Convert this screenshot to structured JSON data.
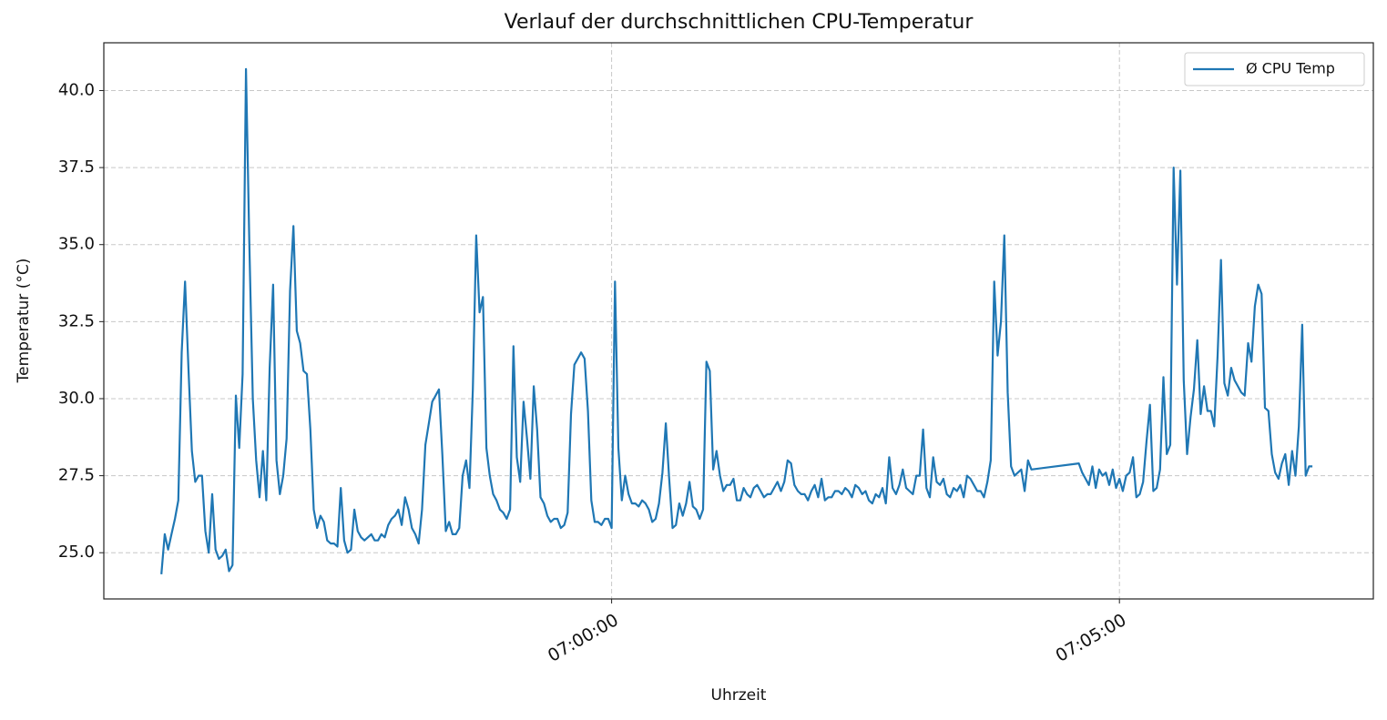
{
  "chart_data": {
    "type": "line",
    "title": "Verlauf der durchschnittlichen CPU-Temperatur",
    "xlabel": "Uhrzeit",
    "ylabel": "Temperatur (°C)",
    "legend": "upper right",
    "grid": true,
    "xlim": [
      "06:55:00",
      "07:07:30"
    ],
    "xticks": [
      "07:00:00",
      "07:05:00"
    ],
    "ylim": [
      23.5,
      41.55
    ],
    "yticks": [
      {
        "value": 25,
        "label": "25.0"
      },
      {
        "value": 27.5,
        "label": "27.5"
      },
      {
        "value": 30,
        "label": "30.0"
      },
      {
        "value": 32.5,
        "label": "32.5"
      },
      {
        "value": 35,
        "label": "35.0"
      },
      {
        "value": 37.5,
        "label": "37.5"
      },
      {
        "value": 40,
        "label": "40.0"
      }
    ],
    "x": [
      "06:55:34",
      "06:55:36",
      "06:55:38",
      "06:55:40",
      "06:55:42",
      "06:55:44",
      "06:55:46",
      "06:55:48",
      "06:55:50",
      "06:55:52",
      "06:55:54",
      "06:55:56",
      "06:55:58",
      "06:56:00",
      "06:56:02",
      "06:56:04",
      "06:56:06",
      "06:56:08",
      "06:56:10",
      "06:56:12",
      "06:56:14",
      "06:56:16",
      "06:56:18",
      "06:56:20",
      "06:56:22",
      "06:56:24",
      "06:56:26",
      "06:56:28",
      "06:56:30",
      "06:56:32",
      "06:56:34",
      "06:56:36",
      "06:56:38",
      "06:56:40",
      "06:56:42",
      "06:56:44",
      "06:56:46",
      "06:56:48",
      "06:56:50",
      "06:56:52",
      "06:56:54",
      "06:56:56",
      "06:56:58",
      "06:57:00",
      "06:57:02",
      "06:57:04",
      "06:57:06",
      "06:57:08",
      "06:57:10",
      "06:57:12",
      "06:57:14",
      "06:57:16",
      "06:57:18",
      "06:57:20",
      "06:57:22",
      "06:57:24",
      "06:57:26",
      "06:57:28",
      "06:57:30",
      "06:57:32",
      "06:57:34",
      "06:57:36",
      "06:57:38",
      "06:57:40",
      "06:57:42",
      "06:57:44",
      "06:57:46",
      "06:57:48",
      "06:57:50",
      "06:57:52",
      "06:57:54",
      "06:57:56",
      "06:57:58",
      "06:58:00",
      "06:58:02",
      "06:58:04",
      "06:58:06",
      "06:58:08",
      "06:58:10",
      "06:58:12",
      "06:58:14",
      "06:58:16",
      "06:58:18",
      "06:58:20",
      "06:58:22",
      "06:58:24",
      "06:58:26",
      "06:58:28",
      "06:58:30",
      "06:58:32",
      "06:58:34",
      "06:58:36",
      "06:58:38",
      "06:58:40",
      "06:58:42",
      "06:58:44",
      "06:58:46",
      "06:58:48",
      "06:58:50",
      "06:58:52",
      "06:58:54",
      "06:58:56",
      "06:58:58",
      "06:59:00",
      "06:59:02",
      "06:59:04",
      "06:59:06",
      "06:59:08",
      "06:59:10",
      "06:59:12",
      "06:59:14",
      "06:59:16",
      "06:59:18",
      "06:59:20",
      "06:59:22",
      "06:59:24",
      "06:59:26",
      "06:59:28",
      "06:59:30",
      "06:59:32",
      "06:59:34",
      "06:59:36",
      "06:59:38",
      "06:59:40",
      "06:59:42",
      "06:59:44",
      "06:59:46",
      "06:59:48",
      "06:59:50",
      "06:59:52",
      "06:59:54",
      "06:59:56",
      "06:59:58",
      "07:00:00",
      "07:00:02",
      "07:00:04",
      "07:00:06",
      "07:00:08",
      "07:00:10",
      "07:00:12",
      "07:00:14",
      "07:00:16",
      "07:00:18",
      "07:00:20",
      "07:00:22",
      "07:00:24",
      "07:00:26",
      "07:00:28",
      "07:00:30",
      "07:00:32",
      "07:00:34",
      "07:00:36",
      "07:00:38",
      "07:00:40",
      "07:00:42",
      "07:00:44",
      "07:00:46",
      "07:00:48",
      "07:00:50",
      "07:00:52",
      "07:00:54",
      "07:00:56",
      "07:00:58",
      "07:01:00",
      "07:01:02",
      "07:01:04",
      "07:01:06",
      "07:01:08",
      "07:01:10",
      "07:01:12",
      "07:01:14",
      "07:01:16",
      "07:01:18",
      "07:01:20",
      "07:01:22",
      "07:01:24",
      "07:01:26",
      "07:01:28",
      "07:01:30",
      "07:01:32",
      "07:01:34",
      "07:01:36",
      "07:01:38",
      "07:01:40",
      "07:01:42",
      "07:01:44",
      "07:01:46",
      "07:01:48",
      "07:01:50",
      "07:01:52",
      "07:01:54",
      "07:01:56",
      "07:01:58",
      "07:02:00",
      "07:02:02",
      "07:02:04",
      "07:02:06",
      "07:02:08",
      "07:02:10",
      "07:02:12",
      "07:02:14",
      "07:02:16",
      "07:02:18",
      "07:02:20",
      "07:02:22",
      "07:02:24",
      "07:02:26",
      "07:02:28",
      "07:02:30",
      "07:02:32",
      "07:02:34",
      "07:02:36",
      "07:02:38",
      "07:02:40",
      "07:02:42",
      "07:02:44",
      "07:02:46",
      "07:02:48",
      "07:02:50",
      "07:02:52",
      "07:02:54",
      "07:02:56",
      "07:02:58",
      "07:03:00",
      "07:03:02",
      "07:03:04",
      "07:03:06",
      "07:03:08",
      "07:03:10",
      "07:03:12",
      "07:03:14",
      "07:03:16",
      "07:03:18",
      "07:03:20",
      "07:03:22",
      "07:03:24",
      "07:03:26",
      "07:03:28",
      "07:03:30",
      "07:03:32",
      "07:03:34",
      "07:03:36",
      "07:03:38",
      "07:03:40",
      "07:03:42",
      "07:03:44",
      "07:03:46",
      "07:03:48",
      "07:03:50",
      "07:03:52",
      "07:03:54",
      "07:03:56",
      "07:03:58",
      "07:04:00",
      "07:04:02",
      "07:04:04",
      "07:04:06",
      "07:04:08",
      "07:04:36",
      "07:04:38",
      "07:04:40",
      "07:04:42",
      "07:04:44",
      "07:04:46",
      "07:04:48",
      "07:04:50",
      "07:04:52",
      "07:04:54",
      "07:04:56",
      "07:04:58",
      "07:05:00",
      "07:05:02",
      "07:05:04",
      "07:05:06",
      "07:05:08",
      "07:05:10",
      "07:05:12",
      "07:05:14",
      "07:05:16",
      "07:05:18",
      "07:05:20",
      "07:05:22",
      "07:05:24",
      "07:05:26",
      "07:05:28",
      "07:05:30",
      "07:05:32",
      "07:05:34",
      "07:05:36",
      "07:05:38",
      "07:05:40",
      "07:05:42",
      "07:05:44",
      "07:05:46",
      "07:05:48",
      "07:05:50",
      "07:05:52",
      "07:05:54",
      "07:05:56",
      "07:05:58",
      "07:06:00",
      "07:06:02",
      "07:06:04",
      "07:06:06",
      "07:06:08",
      "07:06:10",
      "07:06:12",
      "07:06:14",
      "07:06:16",
      "07:06:18",
      "07:06:20",
      "07:06:22",
      "07:06:24",
      "07:06:26",
      "07:06:28",
      "07:06:30",
      "07:06:32",
      "07:06:34",
      "07:06:36",
      "07:06:38",
      "07:06:40",
      "07:06:42",
      "07:06:44",
      "07:06:46",
      "07:06:48",
      "07:06:50",
      "07:06:52",
      "07:06:54"
    ],
    "series": [
      {
        "name": "Ø CPU Temp",
        "color": "#1f77b4",
        "values": [
          24.3,
          25.6,
          25.1,
          25.6,
          26.1,
          26.7,
          31.5,
          33.8,
          31.0,
          28.3,
          27.3,
          27.5,
          27.5,
          25.7,
          25.0,
          26.9,
          25.1,
          24.8,
          24.9,
          25.1,
          24.4,
          24.6,
          30.1,
          28.4,
          30.8,
          40.7,
          35.0,
          30.0,
          28.0,
          26.8,
          28.3,
          26.7,
          31.0,
          33.7,
          28.0,
          26.9,
          27.5,
          28.7,
          33.5,
          35.6,
          32.2,
          31.8,
          30.9,
          30.8,
          29.0,
          26.4,
          25.8,
          26.2,
          26.0,
          25.4,
          25.3,
          25.3,
          25.2,
          27.1,
          25.4,
          25.0,
          25.1,
          26.4,
          25.7,
          25.5,
          25.4,
          25.5,
          25.6,
          25.4,
          25.4,
          25.6,
          25.5,
          25.9,
          26.1,
          26.2,
          26.4,
          25.9,
          26.8,
          26.4,
          25.8,
          25.6,
          25.3,
          26.4,
          28.5,
          29.2,
          29.9,
          30.1,
          30.3,
          28.2,
          25.7,
          26.0,
          25.6,
          25.6,
          25.8,
          27.5,
          28.0,
          27.1,
          30.3,
          35.3,
          32.8,
          33.3,
          28.4,
          27.5,
          26.9,
          26.7,
          26.4,
          26.3,
          26.1,
          26.4,
          31.7,
          28.1,
          27.3,
          29.9,
          28.7,
          27.4,
          30.4,
          29.0,
          26.8,
          26.6,
          26.2,
          26.0,
          26.1,
          26.1,
          25.8,
          25.9,
          26.3,
          29.5,
          31.1,
          31.3,
          31.5,
          31.3,
          29.6,
          26.7,
          26.0,
          26.0,
          25.9,
          26.1,
          26.1,
          25.8,
          33.8,
          28.4,
          26.7,
          27.5,
          26.9,
          26.6,
          26.6,
          26.5,
          26.7,
          26.6,
          26.4,
          26.0,
          26.1,
          26.6,
          27.6,
          29.2,
          27.4,
          25.8,
          25.9,
          26.6,
          26.2,
          26.6,
          27.3,
          26.5,
          26.4,
          26.1,
          26.4,
          31.2,
          30.9,
          27.7,
          28.3,
          27.5,
          27.0,
          27.2,
          27.2,
          27.4,
          26.7,
          26.7,
          27.1,
          26.9,
          26.8,
          27.1,
          27.2,
          27.0,
          26.8,
          26.9,
          26.9,
          27.1,
          27.3,
          27.0,
          27.3,
          28.0,
          27.9,
          27.2,
          27.0,
          26.9,
          26.9,
          26.7,
          27.0,
          27.2,
          26.8,
          27.4,
          26.7,
          26.8,
          26.8,
          27.0,
          27.0,
          26.9,
          27.1,
          27.0,
          26.8,
          27.2,
          27.1,
          26.9,
          27.0,
          26.7,
          26.6,
          26.9,
          26.8,
          27.1,
          26.6,
          28.1,
          27.1,
          26.9,
          27.2,
          27.7,
          27.1,
          27.0,
          26.9,
          27.5,
          27.5,
          29.0,
          27.1,
          26.8,
          28.1,
          27.3,
          27.2,
          27.4,
          26.9,
          26.8,
          27.1,
          27.0,
          27.2,
          26.8,
          27.5,
          27.4,
          27.2,
          27.0,
          27.0,
          26.8,
          27.3,
          28.0,
          33.8,
          31.4,
          32.5,
          35.3,
          30.2,
          27.8,
          27.5,
          27.6,
          27.7,
          27.0,
          28.0,
          27.7,
          27.9,
          27.6,
          27.4,
          27.2,
          27.8,
          27.1,
          27.7,
          27.5,
          27.6,
          27.2,
          27.7,
          27.1,
          27.4,
          27.0,
          27.5,
          27.6,
          28.1,
          26.8,
          26.9,
          27.3,
          28.6,
          29.8,
          27.0,
          27.1,
          27.7,
          30.7,
          28.2,
          28.5,
          37.5,
          33.7,
          37.4,
          30.6,
          28.2,
          29.4,
          30.3,
          31.9,
          29.5,
          30.4,
          29.6,
          29.6,
          29.1,
          31.4,
          34.5,
          30.5,
          30.1,
          31.0,
          30.6,
          30.4,
          30.2,
          30.1,
          31.8,
          31.2,
          33.0,
          33.7,
          33.4,
          29.7,
          29.6,
          28.2,
          27.6,
          27.4,
          27.9,
          28.2,
          27.2,
          28.3,
          27.5,
          29.1,
          32.4,
          27.5,
          27.8,
          27.8
        ]
      }
    ]
  }
}
